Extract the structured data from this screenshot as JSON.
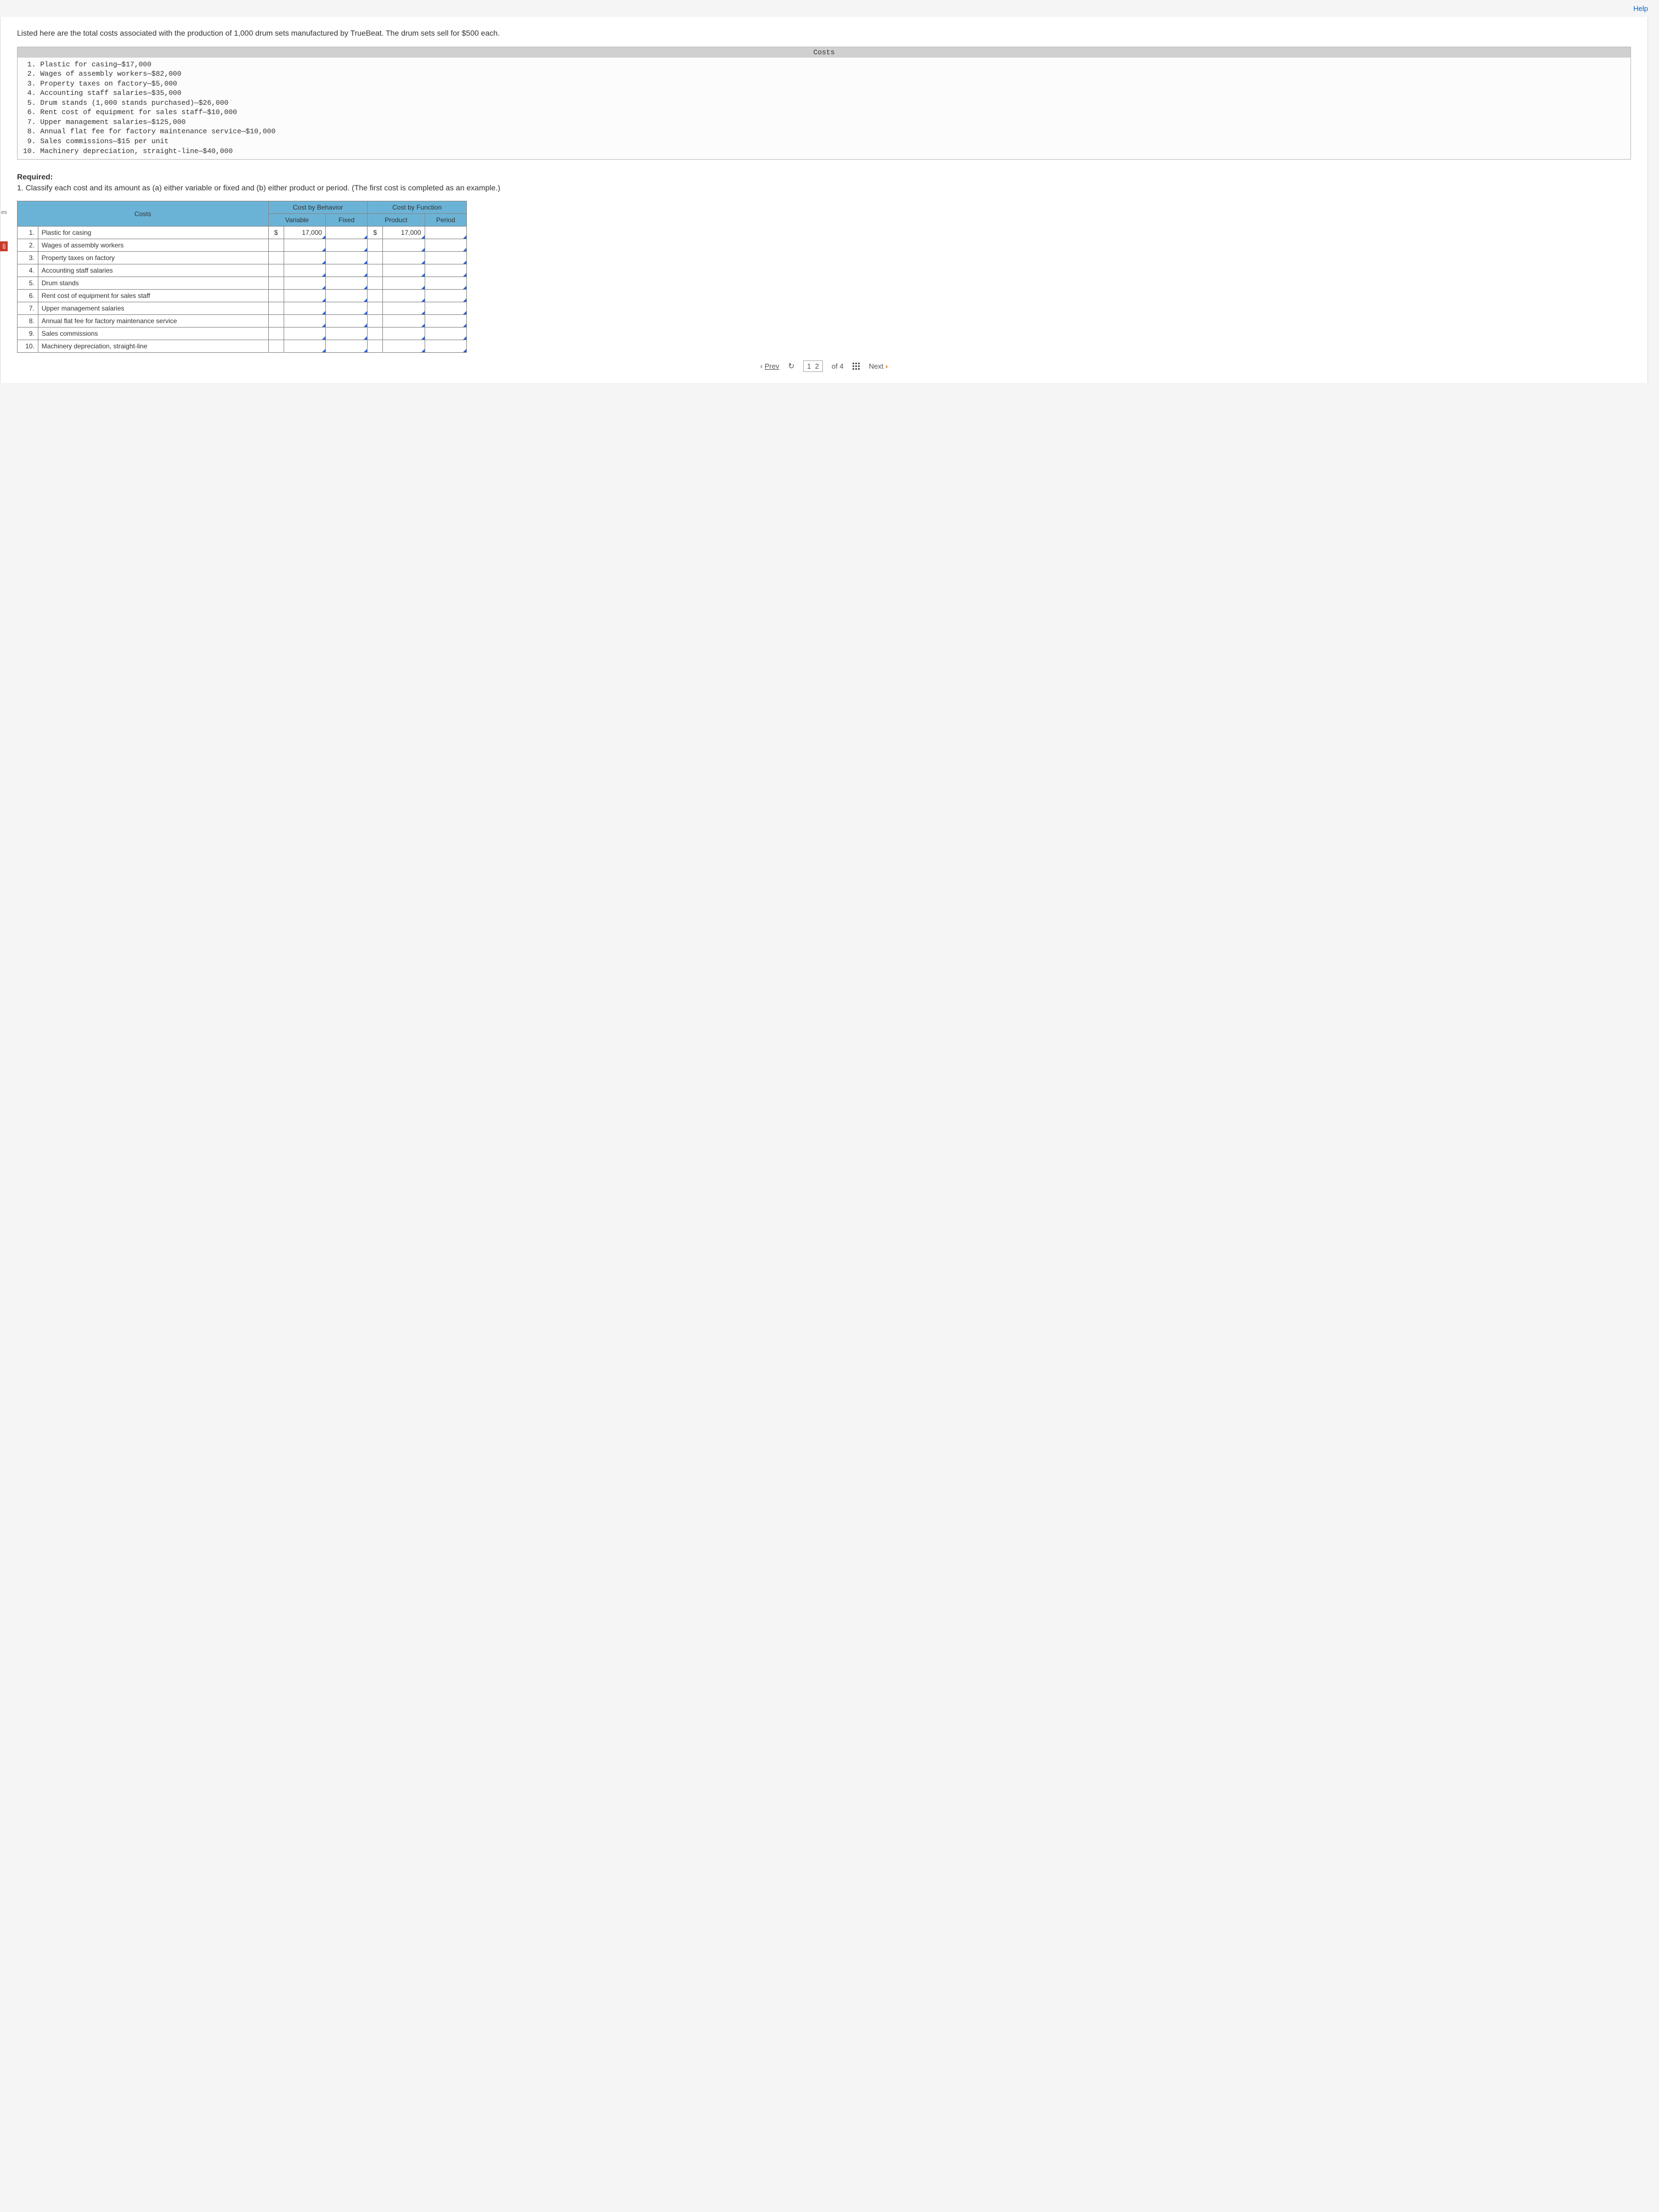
{
  "topbar": {
    "help": "Help"
  },
  "sidebar": {
    "stub": "es",
    "tab": "on"
  },
  "intro": "Listed here are the total costs associated with the production of 1,000 drum sets manufactured by TrueBeat. The drum sets sell for $500 each.",
  "costs_box": {
    "header": "Costs",
    "lines": [
      " 1. Plastic for casing—$17,000",
      " 2. Wages of assembly workers—$82,000",
      " 3. Property taxes on factory—$5,000",
      " 4. Accounting staff salaries—$35,000",
      " 5. Drum stands (1,000 stands purchased)—$26,000",
      " 6. Rent cost of equipment for sales staff—$10,000",
      " 7. Upper management salaries—$125,000",
      " 8. Annual flat fee for factory maintenance service—$10,000",
      " 9. Sales commissions—$15 per unit",
      "10. Machinery depreciation, straight-line—$40,000"
    ]
  },
  "required": {
    "label": "Required:",
    "text": "1. Classify each cost and its amount as (a) either variable or fixed and (b) either product or period. (The first cost is completed as an example.)"
  },
  "table": {
    "headers": {
      "costs": "Costs",
      "behavior": "Cost by Behavior",
      "function": "Cost by Function",
      "variable": "Variable",
      "fixed": "Fixed",
      "product": "Product",
      "period": "Period"
    },
    "rows": [
      {
        "n": "1.",
        "label": "Plastic for casing",
        "var_cur": "$",
        "var_val": "17,000",
        "fix_val": "",
        "prod_cur": "$",
        "prod_val": "17,000",
        "per_val": ""
      },
      {
        "n": "2.",
        "label": "Wages of assembly workers",
        "var_cur": "",
        "var_val": "",
        "fix_val": "",
        "prod_cur": "",
        "prod_val": "",
        "per_val": ""
      },
      {
        "n": "3.",
        "label": "Property taxes on factory",
        "var_cur": "",
        "var_val": "",
        "fix_val": "",
        "prod_cur": "",
        "prod_val": "",
        "per_val": ""
      },
      {
        "n": "4.",
        "label": "Accounting staff salaries",
        "var_cur": "",
        "var_val": "",
        "fix_val": "",
        "prod_cur": "",
        "prod_val": "",
        "per_val": ""
      },
      {
        "n": "5.",
        "label": "Drum stands",
        "var_cur": "",
        "var_val": "",
        "fix_val": "",
        "prod_cur": "",
        "prod_val": "",
        "per_val": ""
      },
      {
        "n": "6.",
        "label": "Rent cost of equipment for sales staff",
        "var_cur": "",
        "var_val": "",
        "fix_val": "",
        "prod_cur": "",
        "prod_val": "",
        "per_val": ""
      },
      {
        "n": "7.",
        "label": "Upper management salaries",
        "var_cur": "",
        "var_val": "",
        "fix_val": "",
        "prod_cur": "",
        "prod_val": "",
        "per_val": ""
      },
      {
        "n": "8.",
        "label": "Annual flat fee for factory maintenance service",
        "var_cur": "",
        "var_val": "",
        "fix_val": "",
        "prod_cur": "",
        "prod_val": "",
        "per_val": ""
      },
      {
        "n": "9.",
        "label": "Sales commissions",
        "var_cur": "",
        "var_val": "",
        "fix_val": "",
        "prod_cur": "",
        "prod_val": "",
        "per_val": ""
      },
      {
        "n": "10.",
        "label": "Machinery depreciation, straight-line",
        "var_cur": "",
        "var_val": "",
        "fix_val": "",
        "prod_cur": "",
        "prod_val": "",
        "per_val": ""
      }
    ]
  },
  "pager": {
    "prev": "Prev",
    "page_current": "1",
    "page_other": "2",
    "of": "of 4",
    "next": "Next"
  },
  "colors": {
    "header_bg": "#6bb3d6",
    "corner": "#2a5fd0",
    "side_tab": "#c63a2b",
    "next_arrow": "#d46a00"
  }
}
